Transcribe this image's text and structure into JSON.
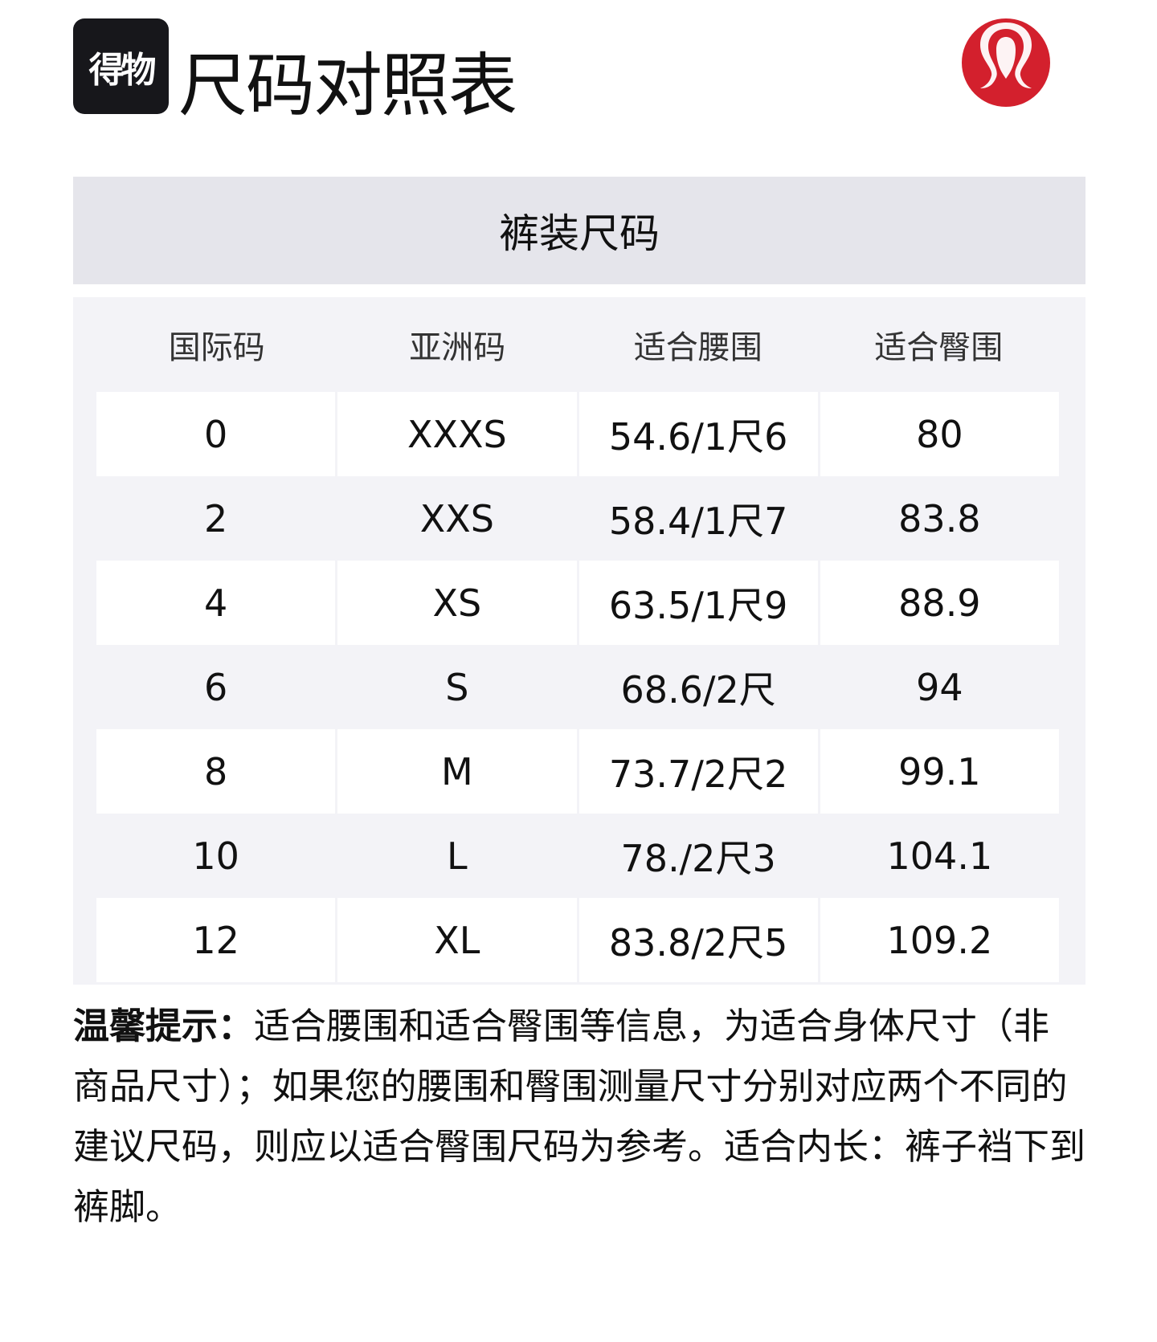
{
  "header": {
    "brand_logo_text": "得物",
    "title": "尺码对照表",
    "partner_logo": "lululemon-logo",
    "partner_logo_color": "#d3202d"
  },
  "section_title": "裤装尺码",
  "table": {
    "columns": [
      "国际码",
      "亚洲码",
      "适合腰围",
      "适合臀围"
    ],
    "rows": [
      [
        "0",
        "XXXS",
        "54.6/1尺6",
        "80"
      ],
      [
        "2",
        "XXS",
        "58.4/1尺7",
        "83.8"
      ],
      [
        "4",
        "XS",
        "63.5/1尺9",
        "88.9"
      ],
      [
        "6",
        "S",
        "68.6/2尺",
        "94"
      ],
      [
        "8",
        "M",
        "73.7/2尺2",
        "99.1"
      ],
      [
        "10",
        "L",
        "78./2尺3",
        "104.1"
      ],
      [
        "12",
        "XL",
        "83.8/2尺5",
        "109.2"
      ]
    ]
  },
  "tip": {
    "label": "温馨提示：",
    "text": "适合腰围和适合臀围等信息，为适合身体尺寸（非商品尺寸）；如果您的腰围和臀围测量尺寸分别对应两个不同的建议尺码，则应以适合臀围尺码为参考。适合内长：裤子裆下到裤脚。"
  }
}
